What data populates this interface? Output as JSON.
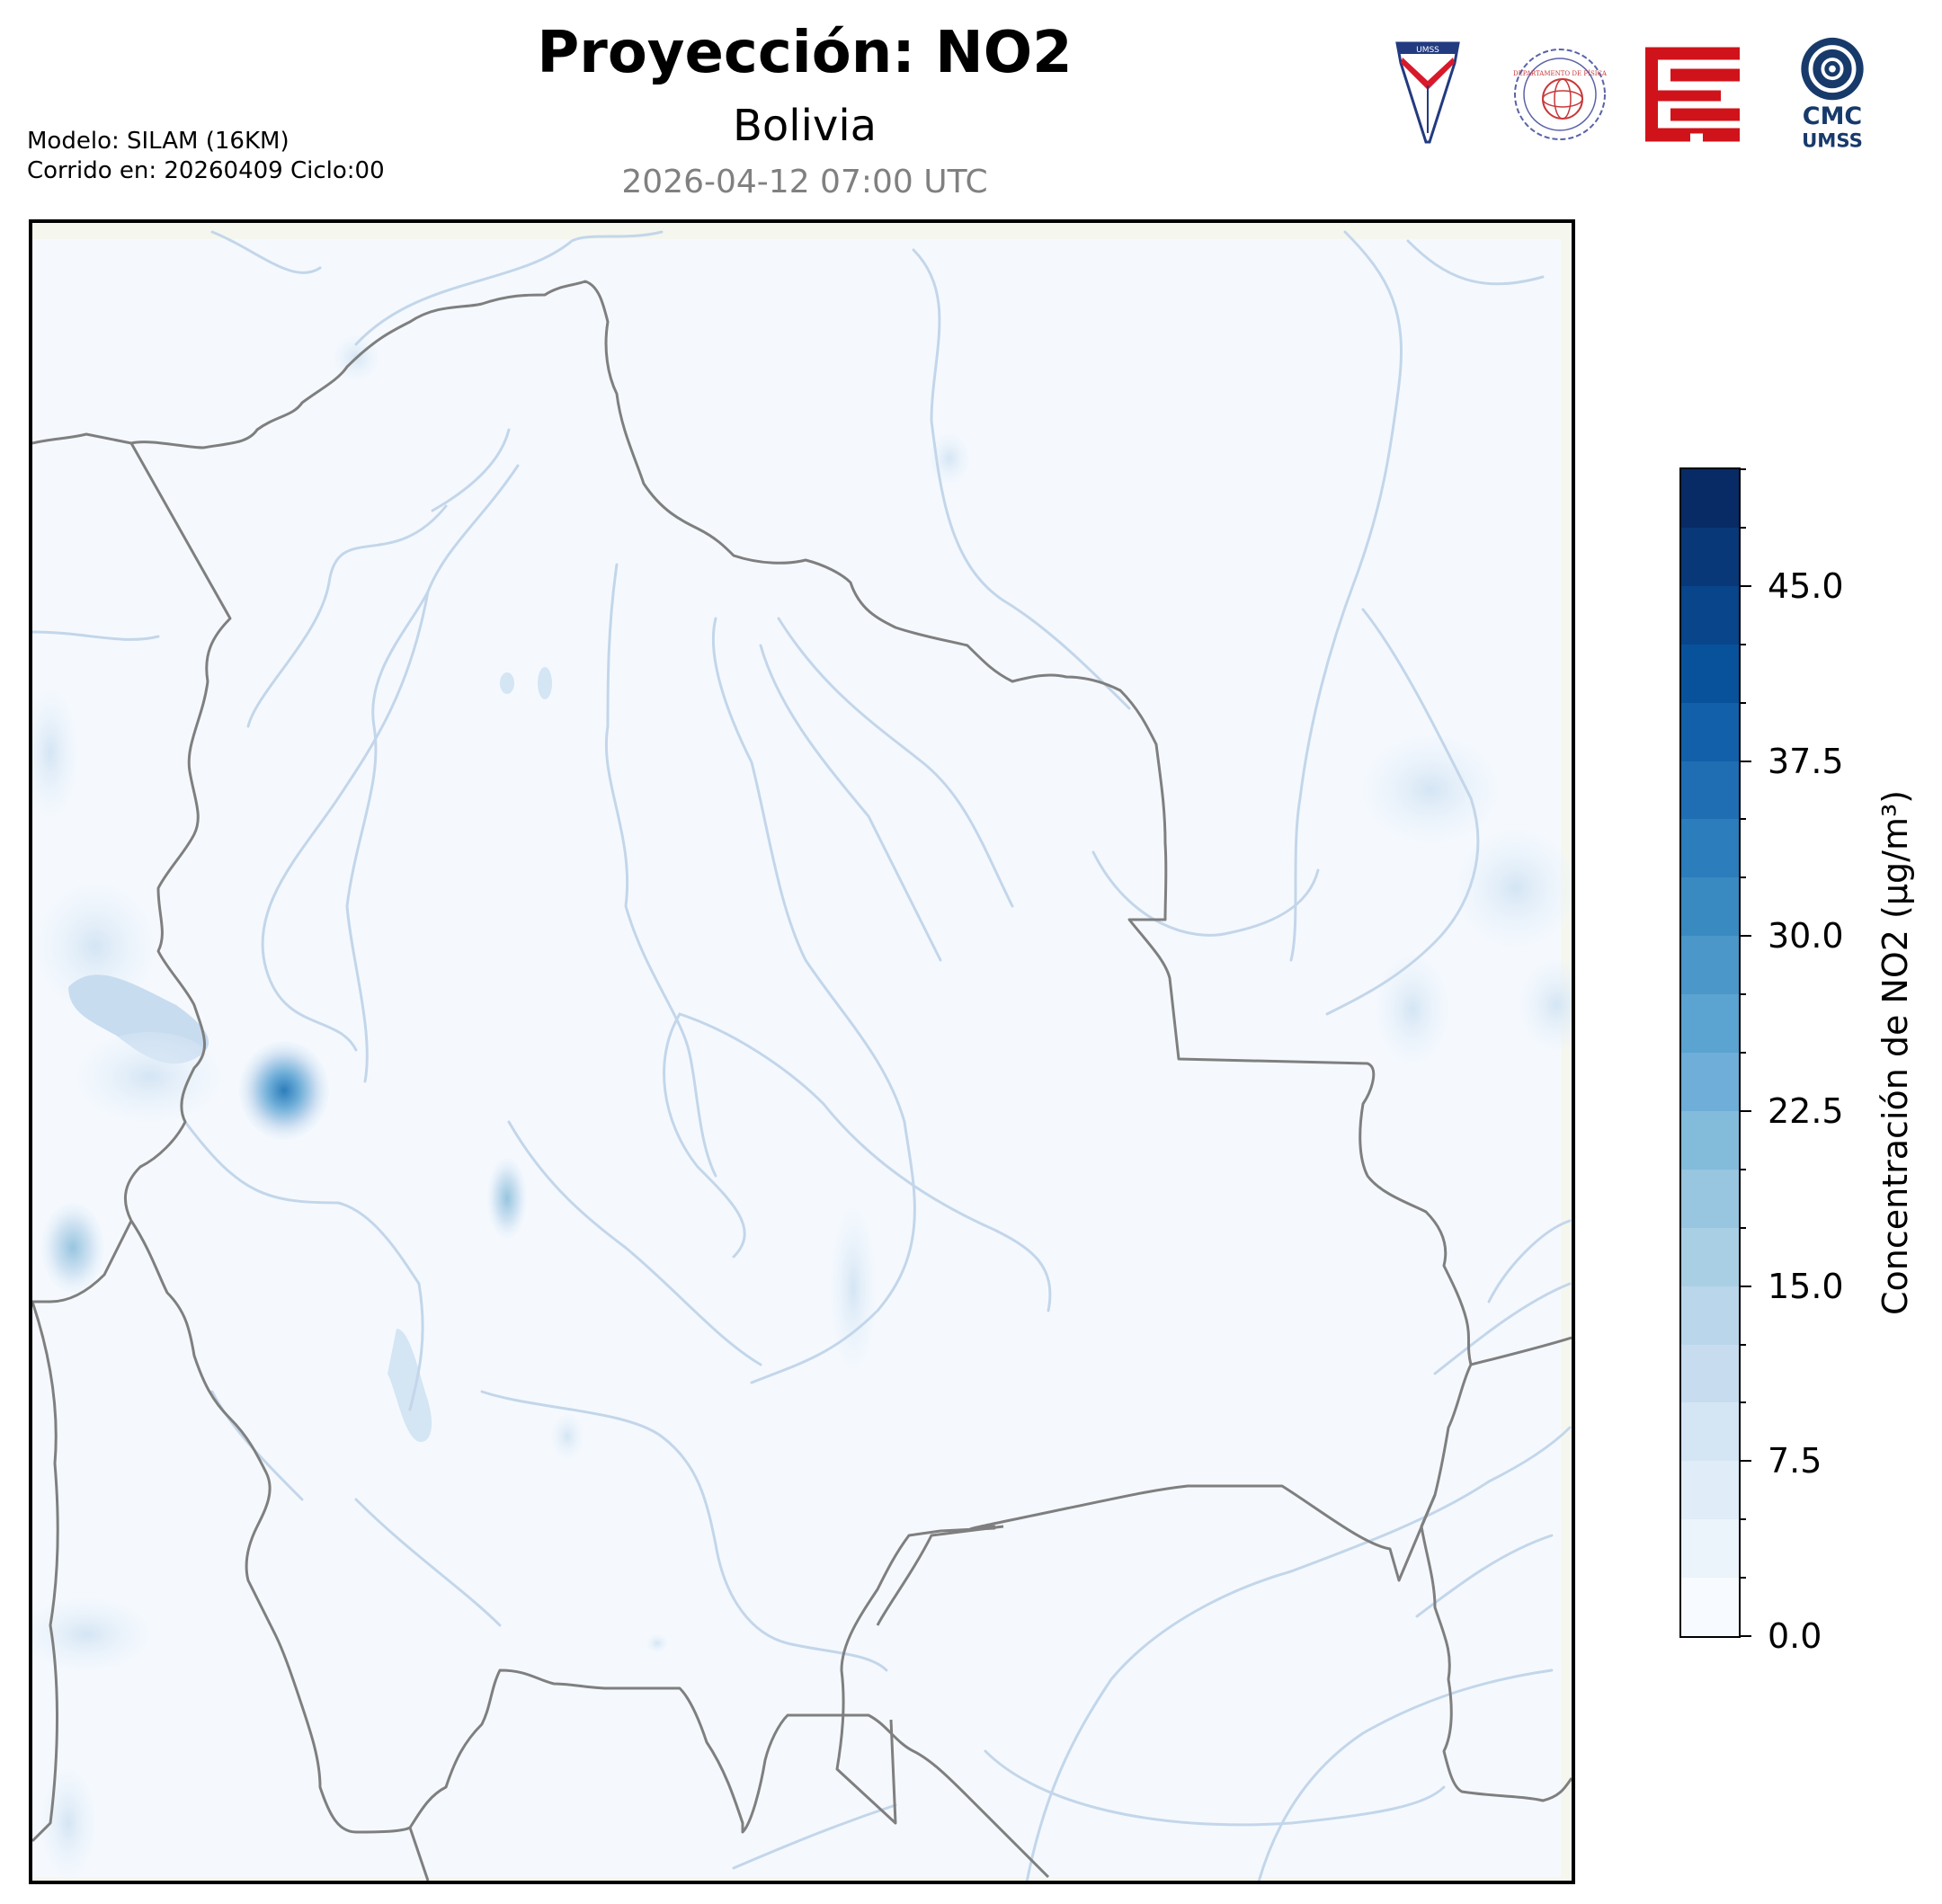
{
  "header": {
    "title": "Proyección: NO2",
    "subtitle": "Bolivia",
    "datetime": "2026-04-12 07:00 UTC",
    "model_line": "Modelo: SILAM (16KM)",
    "run_line": "Corrido en: 20260409 Ciclo:00"
  },
  "logos": {
    "cmc_line1": "CMC",
    "cmc_line2": "UMSS",
    "umss_text": "UMSS",
    "fisica_text": "DEPARTAMENTO DE FÍSICA"
  },
  "colorbar": {
    "label": "Concentración de NO2 (µg/m³)",
    "min": 0,
    "max": 50,
    "tick_values": [
      0.0,
      7.5,
      15.0,
      22.5,
      30.0,
      37.5,
      45.0
    ],
    "tick_labels": [
      "0.0",
      "7.5",
      "15.0",
      "22.5",
      "30.0",
      "37.5",
      "45.0"
    ],
    "levels": 20,
    "colors": [
      "#f7fbff",
      "#ebf3fb",
      "#e0ecf8",
      "#d4e5f4",
      "#c8dcf0",
      "#b9d6ea",
      "#a9cfe5",
      "#98c5df",
      "#83bbdb",
      "#6eaed8",
      "#5ba3d0",
      "#4b97c9",
      "#3a8ac2",
      "#2c7dbb",
      "#1f6eb3",
      "#1360aa",
      "#08529c",
      "#08458a",
      "#083878",
      "#082b65"
    ]
  },
  "colors": {
    "background": "#f7fbff",
    "border": "#7f7f7f",
    "river": "#c3d6ea"
  }
}
